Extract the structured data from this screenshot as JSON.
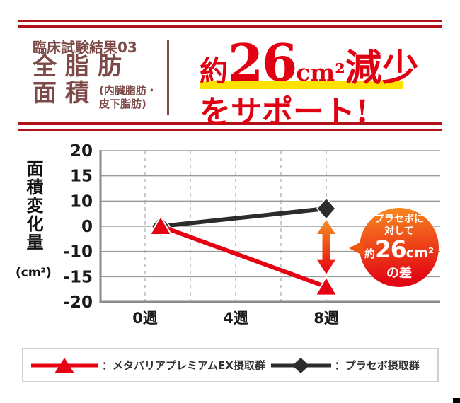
{
  "header": {
    "kicker": "臨床試験結果03",
    "title_line1": "全脂肪",
    "title_line2": "面積",
    "title_paren_line1": "(内臓脂肪・",
    "title_paren_line2": "皮下脂肪)",
    "headline": {
      "about": "約",
      "number": "26",
      "unit": "cm²",
      "action": "減少",
      "line2": "をサポート!"
    }
  },
  "colors": {
    "rule_red": "#b1121a",
    "maroon": "#7d4a47",
    "headline_red": "#e00012",
    "underline_yellow": "#ffe100",
    "grid_gray": "#9a9a9a",
    "axis_gray": "#8a8a8a",
    "dash_gray": "#cccccc",
    "arrow_top": "#f6921e",
    "arrow_bottom": "#e60012",
    "callout_top": "#f8871f",
    "callout_bottom": "#e30613"
  },
  "chart_data": {
    "type": "line",
    "ylabel": "面積変化量",
    "ylabel_unit": "(cm²)",
    "x_categories": [
      "0週",
      "4週",
      "8週"
    ],
    "y_ticks": [
      20,
      15,
      10,
      0,
      -10,
      -15,
      -20
    ],
    "y_axis_layout": "7 gridlines evenly spaced; scale is non-linear (10-unit jump between ±10 and 0)",
    "grid": "horizontal solid gray lines, vertical dashed gray lines at 2-week intervals",
    "legend_position": "bottom",
    "series": [
      {
        "name": "メタバリアプレミアムEX摂取群",
        "color": "#e60012",
        "marker": "triangle",
        "points": [
          {
            "x": "0週",
            "y": 0
          },
          {
            "x": "8週",
            "y": -17
          }
        ]
      },
      {
        "name": "プラセボ摂取群",
        "color": "#2e2b2b",
        "marker": "diamond",
        "points": [
          {
            "x": "0週",
            "y": 0
          },
          {
            "x": "8週",
            "y": 7
          }
        ]
      }
    ],
    "annotation": {
      "line1": "プラセボに",
      "line2": "対して",
      "value_about": "約",
      "value": "26",
      "value_unit": "cm²",
      "line4": "の差"
    },
    "arrow": {
      "at_x": "8週",
      "between": [
        "プラセボ摂取群",
        "メタバリアプレミアムEX摂取群"
      ]
    }
  },
  "legend": {
    "items": [
      {
        "label": "：メタバリアプレミアムEX摂取群",
        "color": "#e60012",
        "marker": "triangle"
      },
      {
        "label": "：プラセボ摂取群",
        "color": "#2e2b2b",
        "marker": "diamond"
      }
    ]
  }
}
